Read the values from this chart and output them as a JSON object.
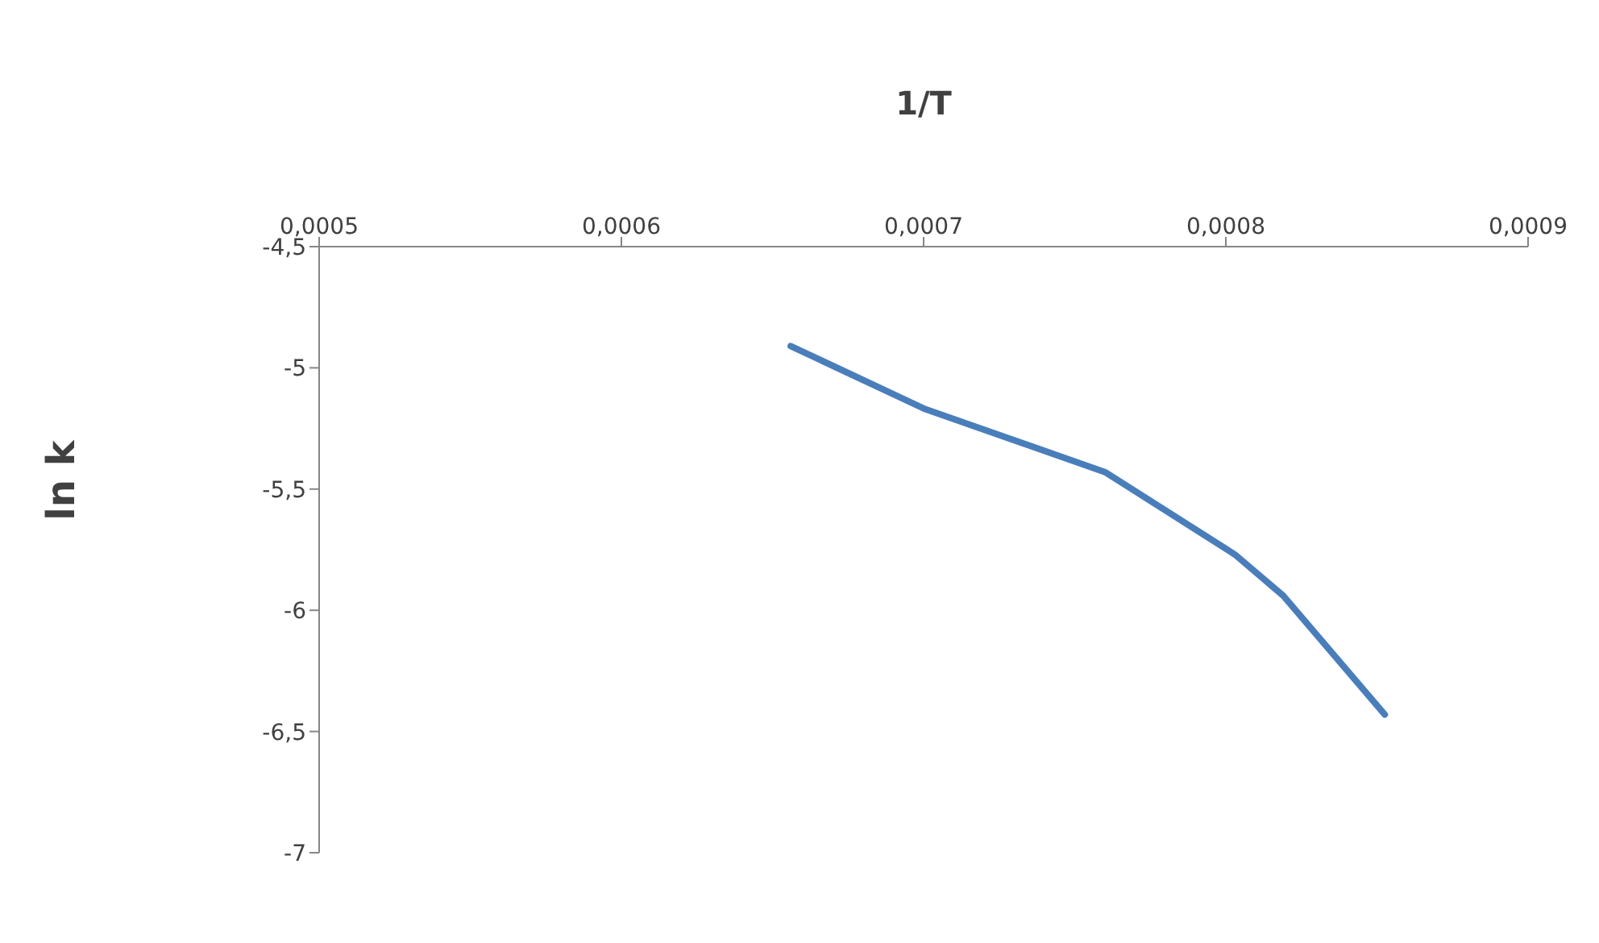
{
  "chart_data": {
    "type": "line",
    "xlabel": "1/T",
    "ylabel": "ln k",
    "x": [
      0.000656,
      0.0007005,
      0.00076,
      0.000803,
      0.000819,
      0.0008526
    ],
    "series": [
      {
        "color": "#4a7ebb",
        "values": [
          -4.91,
          -5.17,
          -5.43,
          -5.77,
          -5.94,
          -6.43
        ]
      }
    ],
    "xlim": [
      0.0005,
      0.0009
    ],
    "xticks": [
      {
        "value": 0.0005,
        "label": "0,0005"
      },
      {
        "value": 0.0006,
        "label": "0,0006"
      },
      {
        "value": 0.0007,
        "label": "0,0007"
      },
      {
        "value": 0.0008,
        "label": "0,0008"
      },
      {
        "value": 0.0009,
        "label": "0,0009"
      }
    ],
    "ylim": [
      -7,
      -4.5
    ],
    "yticks": [
      {
        "value": -7,
        "label": "-7"
      },
      {
        "value": -6.5,
        "label": "-6,5"
      },
      {
        "value": -6,
        "label": "-6"
      },
      {
        "value": -5.5,
        "label": "-5,5"
      },
      {
        "value": -5,
        "label": "-5"
      },
      {
        "value": -4.5,
        "label": "-4,5"
      }
    ],
    "grid": false,
    "legend": false,
    "marker": "none",
    "line_style": "solid"
  }
}
